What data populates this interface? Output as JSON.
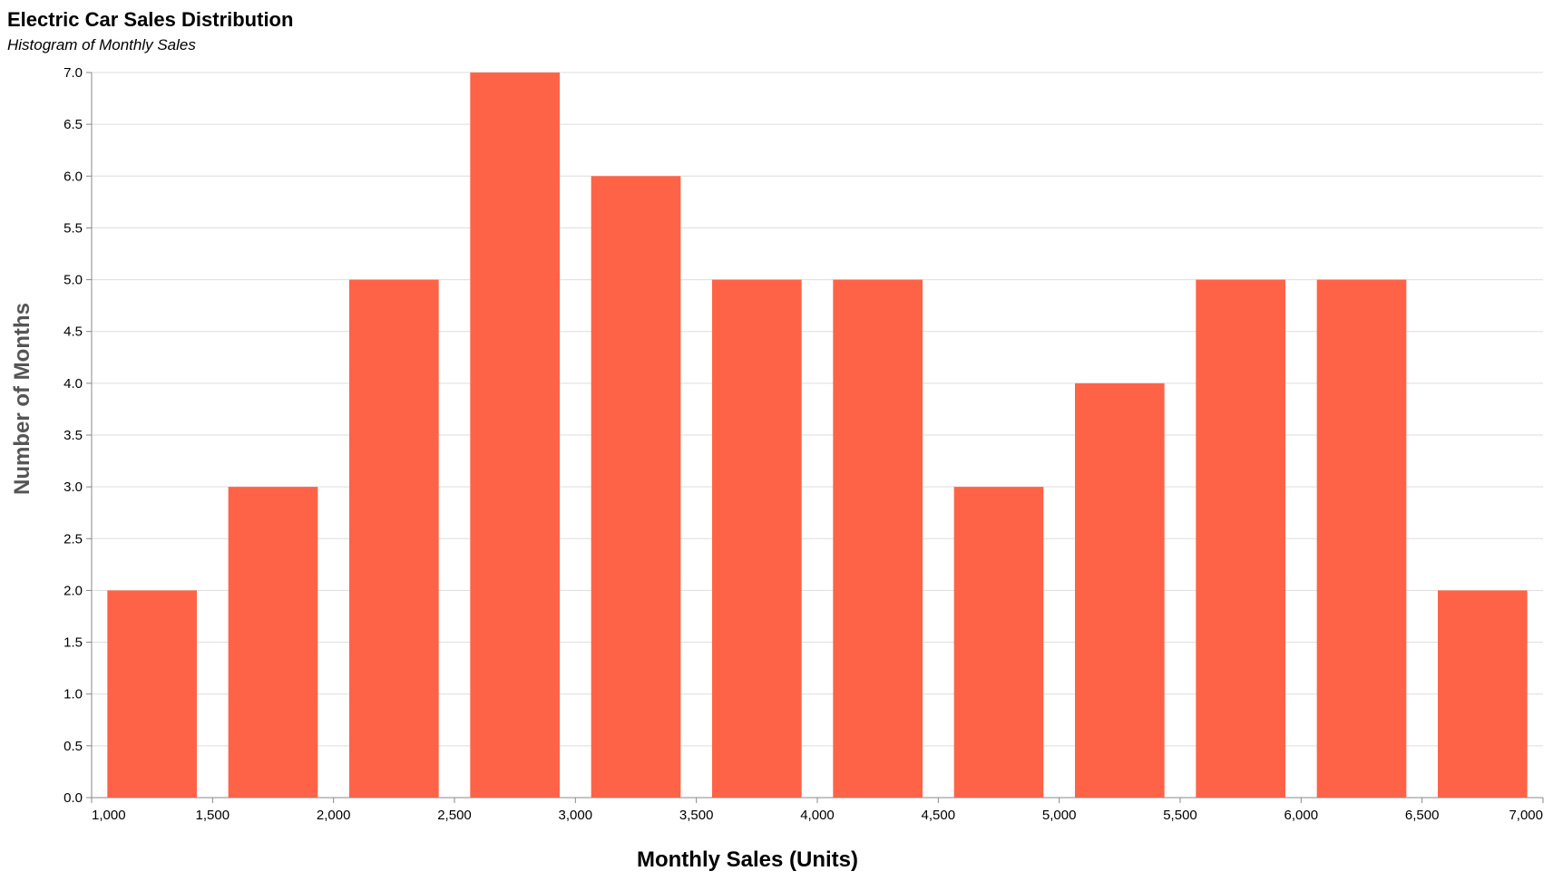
{
  "chart_data": {
    "type": "bar",
    "title": "Electric Car Sales Distribution",
    "subtitle": "Histogram of Monthly Sales",
    "xlabel": "Monthly Sales (Units)",
    "ylabel": "Number of Months",
    "bin_width": 500,
    "bins": [
      {
        "start": 1000,
        "end": 1500,
        "count": 2
      },
      {
        "start": 1500,
        "end": 2000,
        "count": 3
      },
      {
        "start": 2000,
        "end": 2500,
        "count": 5
      },
      {
        "start": 2500,
        "end": 3000,
        "count": 7
      },
      {
        "start": 3000,
        "end": 3500,
        "count": 6
      },
      {
        "start": 3500,
        "end": 4000,
        "count": 5
      },
      {
        "start": 4000,
        "end": 4500,
        "count": 5
      },
      {
        "start": 4500,
        "end": 5000,
        "count": 3
      },
      {
        "start": 5000,
        "end": 5500,
        "count": 4
      },
      {
        "start": 5500,
        "end": 6000,
        "count": 5
      },
      {
        "start": 6000,
        "end": 6500,
        "count": 5
      },
      {
        "start": 6500,
        "end": 7000,
        "count": 2
      }
    ],
    "xlim": [
      1000,
      7000
    ],
    "ylim": [
      0,
      7
    ],
    "x_ticks": [
      1000,
      1500,
      2000,
      2500,
      3000,
      3500,
      4000,
      4500,
      5000,
      5500,
      6000,
      6500,
      7000
    ],
    "x_tick_labels": [
      "1,000",
      "1,500",
      "2,000",
      "2,500",
      "3,000",
      "3,500",
      "4,000",
      "4,500",
      "5,000",
      "5,500",
      "6,000",
      "6,500",
      "7,000"
    ],
    "y_ticks": [
      0,
      0.5,
      1,
      1.5,
      2,
      2.5,
      3,
      3.5,
      4,
      4.5,
      5,
      5.5,
      6,
      6.5,
      7
    ],
    "y_tick_labels": [
      "0.0",
      "0.5",
      "1.0",
      "1.5",
      "2.0",
      "2.5",
      "3.0",
      "3.5",
      "4.0",
      "4.5",
      "5.0",
      "5.5",
      "6.0",
      "6.5",
      "7.0"
    ],
    "grid": true,
    "bar_color": "#FF6347",
    "grid_color": "#dddddd",
    "axis_color": "#888888"
  }
}
